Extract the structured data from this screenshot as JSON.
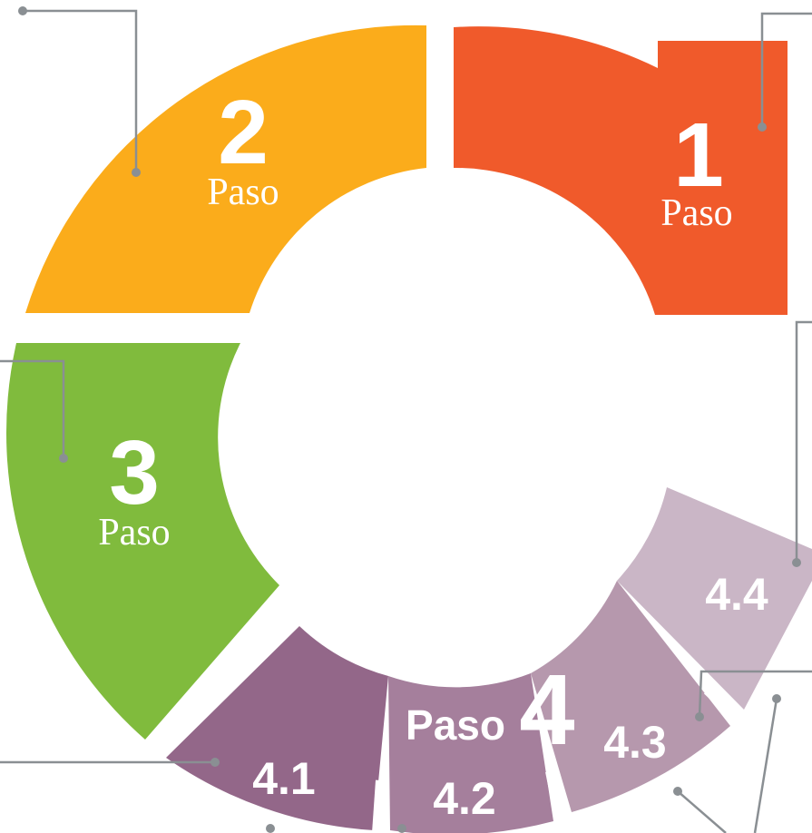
{
  "steps": [
    {
      "number": "1",
      "label": "Paso"
    },
    {
      "number": "2",
      "label": "Paso"
    },
    {
      "number": "3",
      "label": "Paso"
    },
    {
      "number": "4",
      "label": "Paso",
      "substeps": [
        "4.1",
        "4.2",
        "4.3",
        "4.4"
      ]
    }
  ]
}
